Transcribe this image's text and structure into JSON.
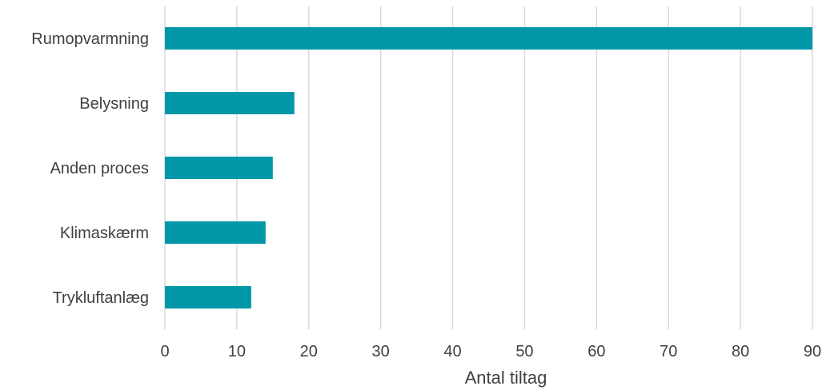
{
  "chart_data": {
    "type": "bar",
    "orientation": "horizontal",
    "categories": [
      "Rumopvarmning",
      "Belysning",
      "Anden proces",
      "Klimaskærm",
      "Trykluftanlæg"
    ],
    "values": [
      90,
      18,
      15,
      14,
      12
    ],
    "title": "",
    "xlabel": "Antal tiltag",
    "ylabel": "",
    "xlim": [
      0,
      90
    ],
    "xticks": [
      0,
      10,
      20,
      30,
      40,
      50,
      60,
      70,
      80,
      90
    ],
    "grid": "vertical",
    "legend": "none",
    "bar_color": "#0097a7",
    "grid_color": "#d9d9d9",
    "text_color": "#404040"
  }
}
